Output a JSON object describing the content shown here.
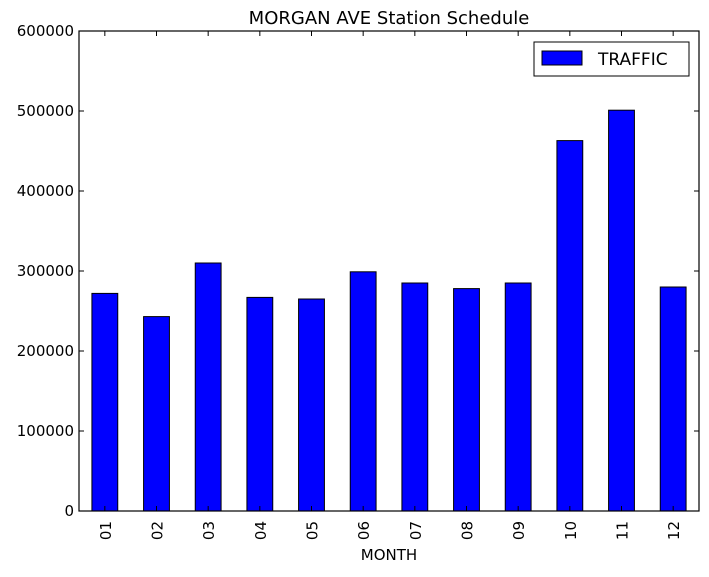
{
  "chart_data": {
    "type": "bar",
    "title": "MORGAN AVE Station Schedule",
    "xlabel": "MONTH",
    "ylabel": "",
    "categories": [
      "01",
      "02",
      "03",
      "04",
      "05",
      "06",
      "07",
      "08",
      "09",
      "10",
      "11",
      "12"
    ],
    "series": [
      {
        "name": "TRAFFIC",
        "color": "#0000ff",
        "values": [
          272000,
          243000,
          310000,
          267000,
          265000,
          299000,
          285000,
          278000,
          285000,
          463000,
          501000,
          280000
        ]
      }
    ],
    "ylim": [
      0,
      600000
    ],
    "yticks": [
      "0",
      "100000",
      "200000",
      "300000",
      "400000",
      "500000",
      "600000"
    ],
    "grid": false,
    "legend_position": "top-right"
  }
}
